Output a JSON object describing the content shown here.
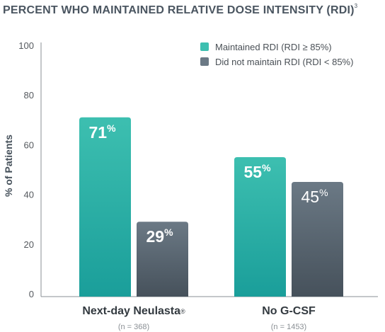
{
  "chart_data": {
    "type": "bar",
    "title": "PERCENT WHO MAINTAINED RELATIVE DOSE INTENSITY (RDI)",
    "title_superscript": "3",
    "ylabel": "% of Patients",
    "xlabel": "",
    "ylim": [
      0,
      100
    ],
    "yticks": [
      0,
      20,
      40,
      60,
      80,
      100
    ],
    "grid": false,
    "legend_position": "top-right",
    "categories": [
      "Next-day Neulasta",
      "No G-CSF"
    ],
    "category_superscripts": [
      "®",
      ""
    ],
    "category_notes": [
      "(n = 368)",
      "(n = 1453)"
    ],
    "series": [
      {
        "name": "Maintained RDI (RDI ≥ 85%)",
        "values": [
          71,
          55
        ],
        "labels": [
          "71",
          "55"
        ],
        "label_weight": [
          "bold",
          "bold"
        ],
        "color": "#3dbfb0",
        "color_dark": "#1a9e9a"
      },
      {
        "name": "Did not maintain RDI (RDI < 85%)",
        "values": [
          29,
          45
        ],
        "labels": [
          "29",
          "45"
        ],
        "label_weight": [
          "bold",
          "normal"
        ],
        "color": "#6b7985",
        "color_dark": "#46515b"
      }
    ],
    "value_label_suffix": "%"
  }
}
